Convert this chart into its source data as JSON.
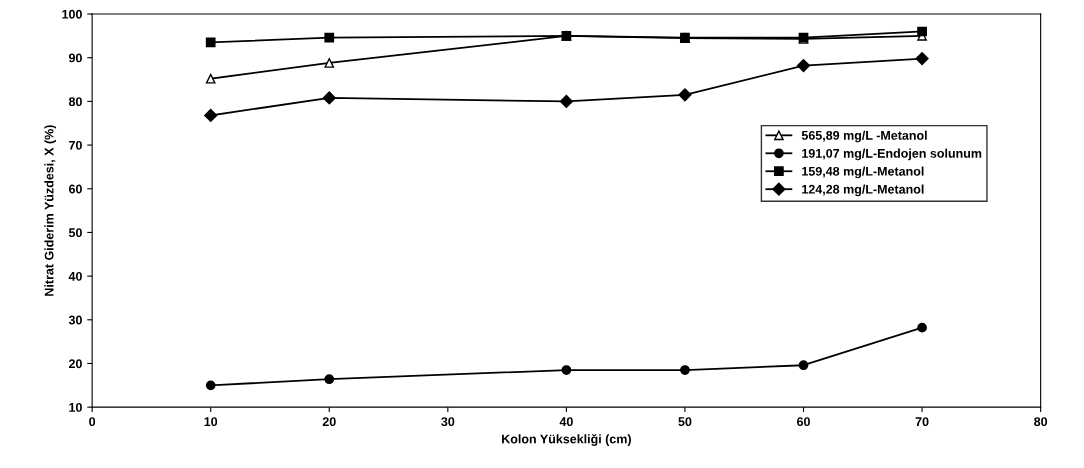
{
  "chart_data": {
    "type": "line",
    "xlabel": "Kolon Yüksekliği (cm)",
    "ylabel": "Nitrat Giderim Yüzdesi, X (%)",
    "x": [
      10,
      20,
      40,
      50,
      60,
      70
    ],
    "series": [
      {
        "name": "565,89 mg/L -Metanol",
        "color": "#000000",
        "marker": "triangle",
        "values": [
          85.2,
          88.8,
          95,
          94.5,
          94.3,
          95
        ]
      },
      {
        "name": "191,07 mg/L-Endojen solunum",
        "color": "#000000",
        "marker": "circle",
        "values": [
          15,
          16.4,
          18.5,
          18.5,
          19.6,
          28.2
        ]
      },
      {
        "name": "159,48 mg/L-Metanol",
        "color": "#000000",
        "marker": "square",
        "values": [
          93.5,
          94.6,
          95,
          94.6,
          94.6,
          96
        ]
      },
      {
        "name": "124,28 mg/L-Metanol",
        "color": "#000000",
        "marker": "diamond",
        "values": [
          76.8,
          80.8,
          80,
          81.5,
          88.2,
          89.8
        ]
      }
    ],
    "xlim": [
      0,
      80
    ],
    "xticks": [
      0,
      10,
      20,
      30,
      40,
      50,
      60,
      70,
      80
    ],
    "ylim": [
      10,
      100
    ],
    "yticks": [
      10,
      20,
      30,
      40,
      50,
      60,
      70,
      80,
      90,
      100
    ],
    "grid": false,
    "legend": "right",
    "line_style": "solid"
  }
}
